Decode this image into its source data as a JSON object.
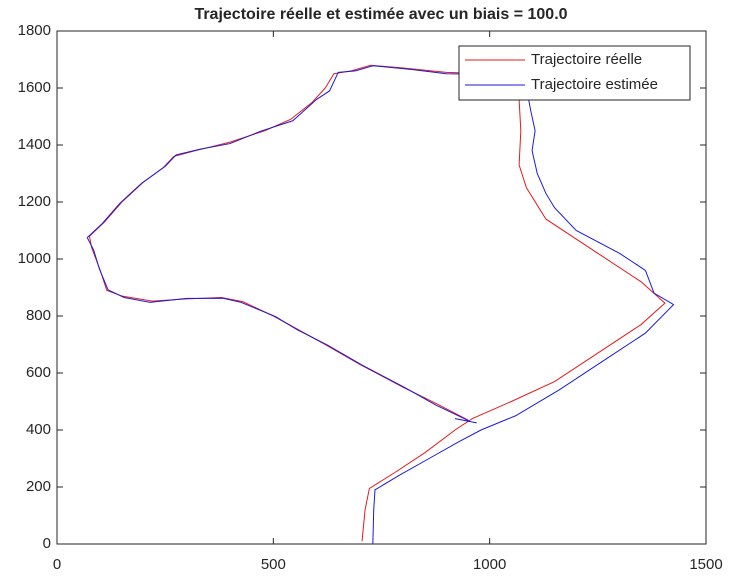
{
  "chart_data": {
    "type": "line",
    "title": "Trajectoire réelle et estimée avec un biais = 100.0",
    "xlim": [
      0,
      1500
    ],
    "xticks": [
      0,
      500,
      1000,
      1500
    ],
    "ylim": [
      0,
      1800
    ],
    "yticks": [
      0,
      200,
      400,
      600,
      800,
      1000,
      1200,
      1400,
      1600,
      1800
    ],
    "legend": "top-right",
    "series": [
      {
        "name": "Trajectoire réelle",
        "color": "#e41a1c",
        "x": [
          705,
          712,
          722,
          780,
          850,
          920,
          960,
          1050,
          1150,
          1250,
          1350,
          1405,
          1350,
          1250,
          1130,
          1085,
          1068,
          1072,
          1068,
          1060,
          1000,
          900,
          800,
          725,
          680,
          640,
          620,
          590,
          540,
          480,
          400,
          320,
          270,
          245,
          200,
          150,
          110,
          75,
          80,
          100,
          115,
          150,
          220,
          300,
          380,
          430,
          500,
          560,
          620,
          700,
          800,
          880,
          950
        ],
        "values": [
          10,
          120,
          195,
          250,
          320,
          400,
          440,
          500,
          570,
          670,
          770,
          845,
          920,
          1020,
          1140,
          1250,
          1330,
          1450,
          1560,
          1640,
          1650,
          1655,
          1670,
          1680,
          1660,
          1650,
          1600,
          1550,
          1490,
          1450,
          1410,
          1380,
          1360,
          1320,
          1270,
          1200,
          1130,
          1080,
          1040,
          960,
          890,
          870,
          852,
          860,
          865,
          850,
          800,
          750,
          700,
          630,
          550,
          490,
          435
        ]
      },
      {
        "name": "Trajectoire estimée",
        "color": "#1a1adb",
        "x": [
          730,
          732,
          735,
          790,
          860,
          930,
          980,
          1060,
          1160,
          1260,
          1360,
          1425,
          1380,
          1360,
          1300,
          1200,
          1150,
          1130,
          1110,
          1098,
          1105,
          1095,
          1085,
          1070,
          1000,
          900,
          820,
          730,
          690,
          650,
          630,
          600,
          545,
          470,
          400,
          330,
          275,
          250,
          195,
          145,
          105,
          70,
          85,
          98,
          118,
          155,
          215,
          300,
          385,
          425,
          505,
          555,
          625,
          705,
          805,
          875,
          955,
          920,
          970
        ],
        "values": [
          0,
          120,
          190,
          240,
          300,
          360,
          400,
          450,
          540,
          640,
          740,
          840,
          880,
          960,
          1020,
          1100,
          1180,
          1230,
          1300,
          1380,
          1450,
          1520,
          1600,
          1640,
          1648,
          1650,
          1665,
          1678,
          1660,
          1655,
          1590,
          1560,
          1485,
          1448,
          1405,
          1385,
          1365,
          1325,
          1265,
          1195,
          1125,
          1075,
          1030,
          965,
          892,
          865,
          848,
          862,
          862,
          848,
          798,
          752,
          698,
          628,
          548,
          488,
          430,
          440,
          425
        ]
      }
    ]
  }
}
